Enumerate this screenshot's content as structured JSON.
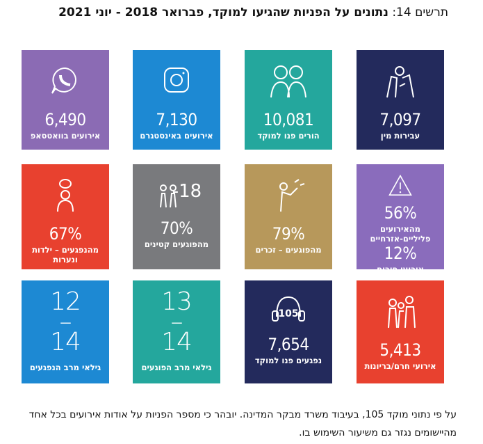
{
  "header": {
    "label": "תרשים 14:",
    "title": "נתונים על הפניות שהגיעו למוקד, פברואר 2018 - יוני 2021"
  },
  "tiles": [
    {
      "color": "#232a5c",
      "value": "7,097",
      "label": "עבירות מין"
    },
    {
      "color": "#24a79d",
      "value": "10,081",
      "label": "הורים פנו למוקד"
    },
    {
      "color": "#1d89d3",
      "value": "7,130",
      "label": "אירועים באינסטגרם"
    },
    {
      "color": "#8b6bb4",
      "value": "6,490",
      "label": "אירועים בוואטסאפ"
    },
    {
      "color": "#8a6cbc",
      "value": "56%",
      "label": "מהאירועים פליליים-אזרחיים",
      "value2": "12%",
      "label2": "אירועי חירום"
    },
    {
      "color": "#b7985b",
      "value": "79%",
      "label": "מהפוגעים – זכרים"
    },
    {
      "color": "#797a7d",
      "icon_text": "18-",
      "value": "70%",
      "label": "מהפוגעים קטינים"
    },
    {
      "color": "#e8412f",
      "value": "67%",
      "label": "מהנפגעים – ילדות ונערות"
    },
    {
      "color": "#e8412f",
      "value": "5,413",
      "label": "אירועי חרם/בריונות"
    },
    {
      "color": "#232a5c",
      "icon_text": "105",
      "value": "7,654",
      "label": "נפגעים פנו למוקד"
    },
    {
      "color": "#24a79d",
      "range_top": "13",
      "range_bottom": "14",
      "label": "גילאי מרב הפוגעים"
    },
    {
      "color": "#1d89d3",
      "range_top": "12",
      "range_bottom": "14",
      "label": "גילאי מרב הנפגעים"
    }
  ],
  "footer": {
    "text": "על פי נתוני מוקד 105, בעיבוד משרד מבקר המדינה. יובהר כי מספר הפניות על אודות אירועים בכל אחד מהיישומים נגזר גם משיעור השימוש בו."
  }
}
